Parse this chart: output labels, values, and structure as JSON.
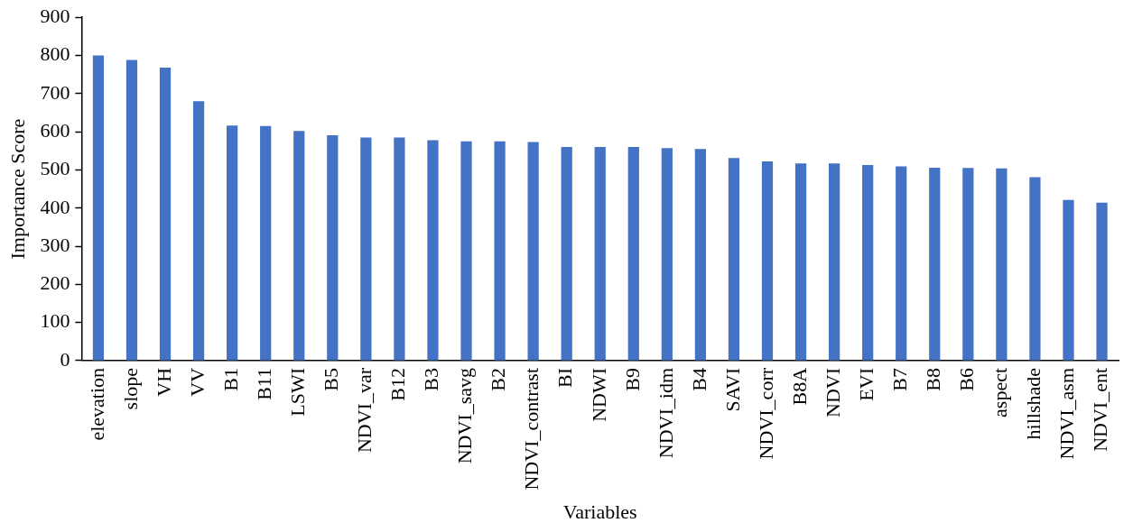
{
  "chart_data": {
    "type": "bar",
    "xlabel": "Variables",
    "ylabel": "Importance Score",
    "categories": [
      "elevation",
      "slope",
      "VH",
      "VV",
      "B1",
      "B11",
      "LSWI",
      "B5",
      "NDVI_var",
      "B12",
      "B3",
      "NDVI_savg",
      "B2",
      "NDVI_contrast",
      "BI",
      "NDWI",
      "B9",
      "NDVI_idm",
      "B4",
      "SAVI",
      "NDVI_corr",
      "B8A",
      "NDVI",
      "EVI",
      "B7",
      "B8",
      "B6",
      "aspect",
      "hillshade",
      "NDVI_asm",
      "NDVI_ent"
    ],
    "values": [
      800,
      788,
      768,
      680,
      616,
      615,
      602,
      591,
      585,
      585,
      578,
      575,
      575,
      573,
      560,
      560,
      560,
      557,
      555,
      531,
      522,
      517,
      517,
      513,
      509,
      506,
      505,
      504,
      481,
      421,
      414
    ],
    "color": "#4472c4",
    "ylim": [
      0,
      900
    ],
    "yticks": [
      0,
      100,
      200,
      300,
      400,
      500,
      600,
      700,
      800,
      900
    ],
    "grid": false,
    "legend": false
  }
}
